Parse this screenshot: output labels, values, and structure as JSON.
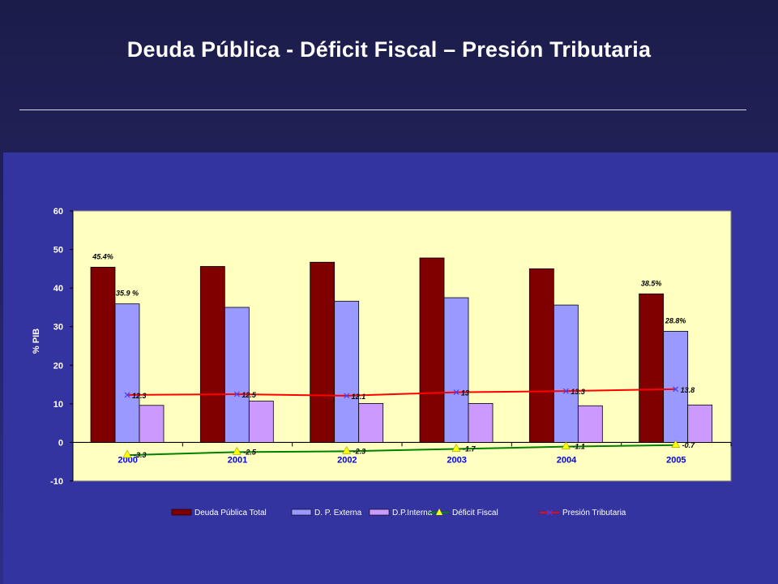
{
  "slide": {
    "title": "Deuda Pública - Déficit Fiscal – Presión Tributaria"
  },
  "colors": {
    "plot_bg": "#ffffc0",
    "deuda_total": "#800000",
    "dp_externa": "#9999ff",
    "dp_interna": "#cc99ff",
    "deficit": "#008000",
    "deficit_marker": "#ffff00",
    "presion": "#ff0000",
    "year_labels": "#0000ff",
    "axis_text": "#ffffff"
  },
  "chart_data": {
    "type": "bar",
    "ylabel": "% PIB",
    "ylim": [
      -10,
      60
    ],
    "yticks": [
      60,
      50,
      40,
      30,
      20,
      10,
      0,
      -10
    ],
    "categories": [
      "2000",
      "2001",
      "2002",
      "2003",
      "2004",
      "2005"
    ],
    "series": [
      {
        "name": "Deuda Pública Total",
        "kind": "bar",
        "values": [
          45.4,
          45.6,
          46.7,
          47.8,
          45.0,
          38.5
        ],
        "labels": [
          "45.4%",
          "",
          "",
          "",
          "",
          "38.5%"
        ]
      },
      {
        "name": "D. P. Externa",
        "kind": "bar",
        "values": [
          35.9,
          35.0,
          36.6,
          37.5,
          35.6,
          28.8
        ],
        "labels": [
          "35.9 %",
          "",
          "",
          "",
          "",
          "28.8%"
        ]
      },
      {
        "name": "D.P.Interna",
        "kind": "bar",
        "values": [
          9.6,
          10.7,
          10.1,
          10.1,
          9.5,
          9.7
        ],
        "labels": [
          "",
          "",
          "",
          "",
          "",
          ""
        ]
      },
      {
        "name": "Déficit Fiscal",
        "kind": "line",
        "values": [
          -3.3,
          -2.5,
          -2.3,
          -1.7,
          -1.1,
          -0.7
        ],
        "labels": [
          "-3.3",
          "-2.5",
          "-2.3",
          "-1.7",
          "-1.1",
          "-0.7"
        ]
      },
      {
        "name": "Presión Tributaria",
        "kind": "line",
        "values": [
          12.3,
          12.5,
          12.1,
          13,
          13.3,
          13.8
        ],
        "labels": [
          "12.3",
          "12.5",
          "12.1",
          "13",
          "13.3",
          "13.8"
        ]
      }
    ],
    "grid": false,
    "legend": "bottom"
  }
}
